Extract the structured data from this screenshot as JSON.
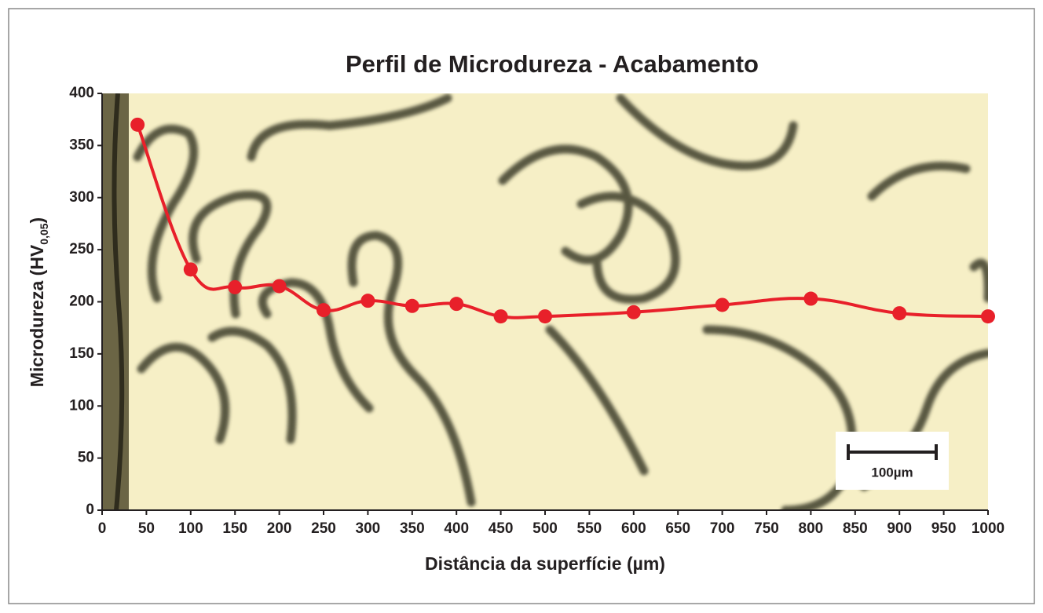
{
  "chart_data": {
    "type": "line",
    "title": "Perfil de Microdureza - Acabamento",
    "x_label": "Distância da superfície (µm)",
    "y_label": {
      "text": "Microdureza (HV",
      "subscript": "0,05",
      "suffix": ")"
    },
    "x": [
      40,
      100,
      150,
      200,
      250,
      300,
      350,
      400,
      450,
      500,
      600,
      700,
      800,
      900,
      1000
    ],
    "series": [
      {
        "color": "#e8202a",
        "values": [
          370,
          231,
          214,
          215,
          192,
          201,
          196,
          198,
          186,
          186,
          190,
          197,
          203,
          189,
          186
        ]
      }
    ],
    "xlim": [
      0,
      1000
    ],
    "xticks": [
      0,
      50,
      100,
      150,
      200,
      250,
      300,
      350,
      400,
      450,
      500,
      550,
      600,
      650,
      700,
      750,
      800,
      850,
      900,
      950,
      1000
    ],
    "ylim": [
      0,
      400
    ],
    "yticks": [
      0,
      50,
      100,
      150,
      200,
      250,
      300,
      350,
      400
    ],
    "annotation": "100µm"
  }
}
